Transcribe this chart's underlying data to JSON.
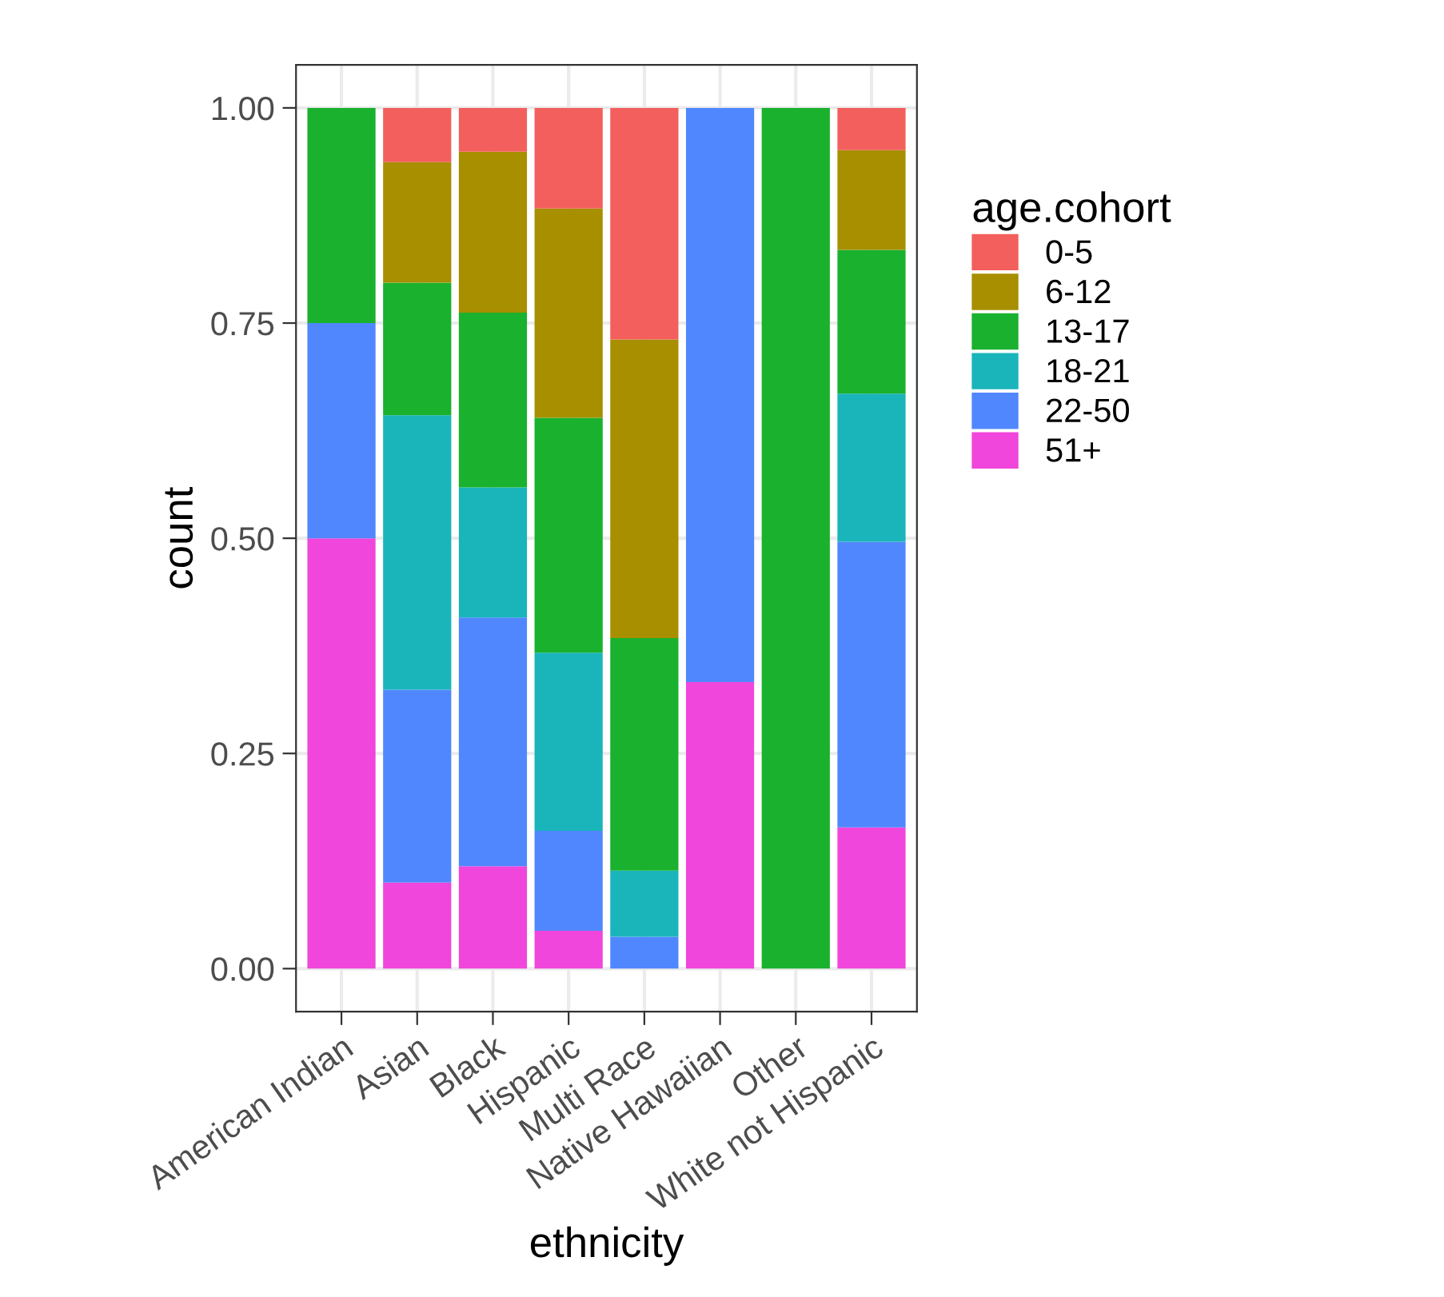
{
  "chart_data": {
    "type": "bar",
    "stacked": true,
    "xlabel": "ethnicity",
    "ylabel": "count",
    "legend_title": "age.cohort",
    "legend": "right",
    "grid": true,
    "categories": [
      "American Indian",
      "Asian",
      "Black",
      "Hispanic",
      "Multi Race",
      "Native Hawaiian",
      "Other",
      "White not Hispanic"
    ],
    "ylim": [
      -0.05,
      1.05
    ],
    "yticks": [
      {
        "value": 0,
        "label": "0.00"
      },
      {
        "value": 0.25,
        "label": "0.25"
      },
      {
        "value": 0.5,
        "label": "0.50"
      },
      {
        "value": 0.75,
        "label": "0.75"
      },
      {
        "value": 1,
        "label": "1.00"
      }
    ],
    "series": [
      {
        "name": "51+",
        "color": "#f046db",
        "values": [
          0.5,
          0.1,
          0.119,
          0.044,
          0,
          0.333,
          0,
          0.164
        ]
      },
      {
        "name": "22-50",
        "color": "#5087fe",
        "values": [
          0.25,
          0.224,
          0.289,
          0.116,
          0.037,
          0.667,
          0,
          0.332
        ]
      },
      {
        "name": "18-21",
        "color": "#19b5bb",
        "values": [
          0,
          0.319,
          0.151,
          0.207,
          0.077,
          0,
          0,
          0.172
        ]
      },
      {
        "name": "13-17",
        "color": "#19b12e",
        "values": [
          0.25,
          0.154,
          0.203,
          0.273,
          0.27,
          0,
          1.0,
          0.167
        ]
      },
      {
        "name": "6-12",
        "color": "#a78f00",
        "values": [
          0,
          0.14,
          0.187,
          0.243,
          0.347,
          0,
          0,
          0.116
        ]
      },
      {
        "name": "0-5",
        "color": "#f35f5c",
        "values": [
          0,
          0.063,
          0.051,
          0.117,
          0.269,
          0,
          0,
          0.049
        ]
      }
    ]
  }
}
